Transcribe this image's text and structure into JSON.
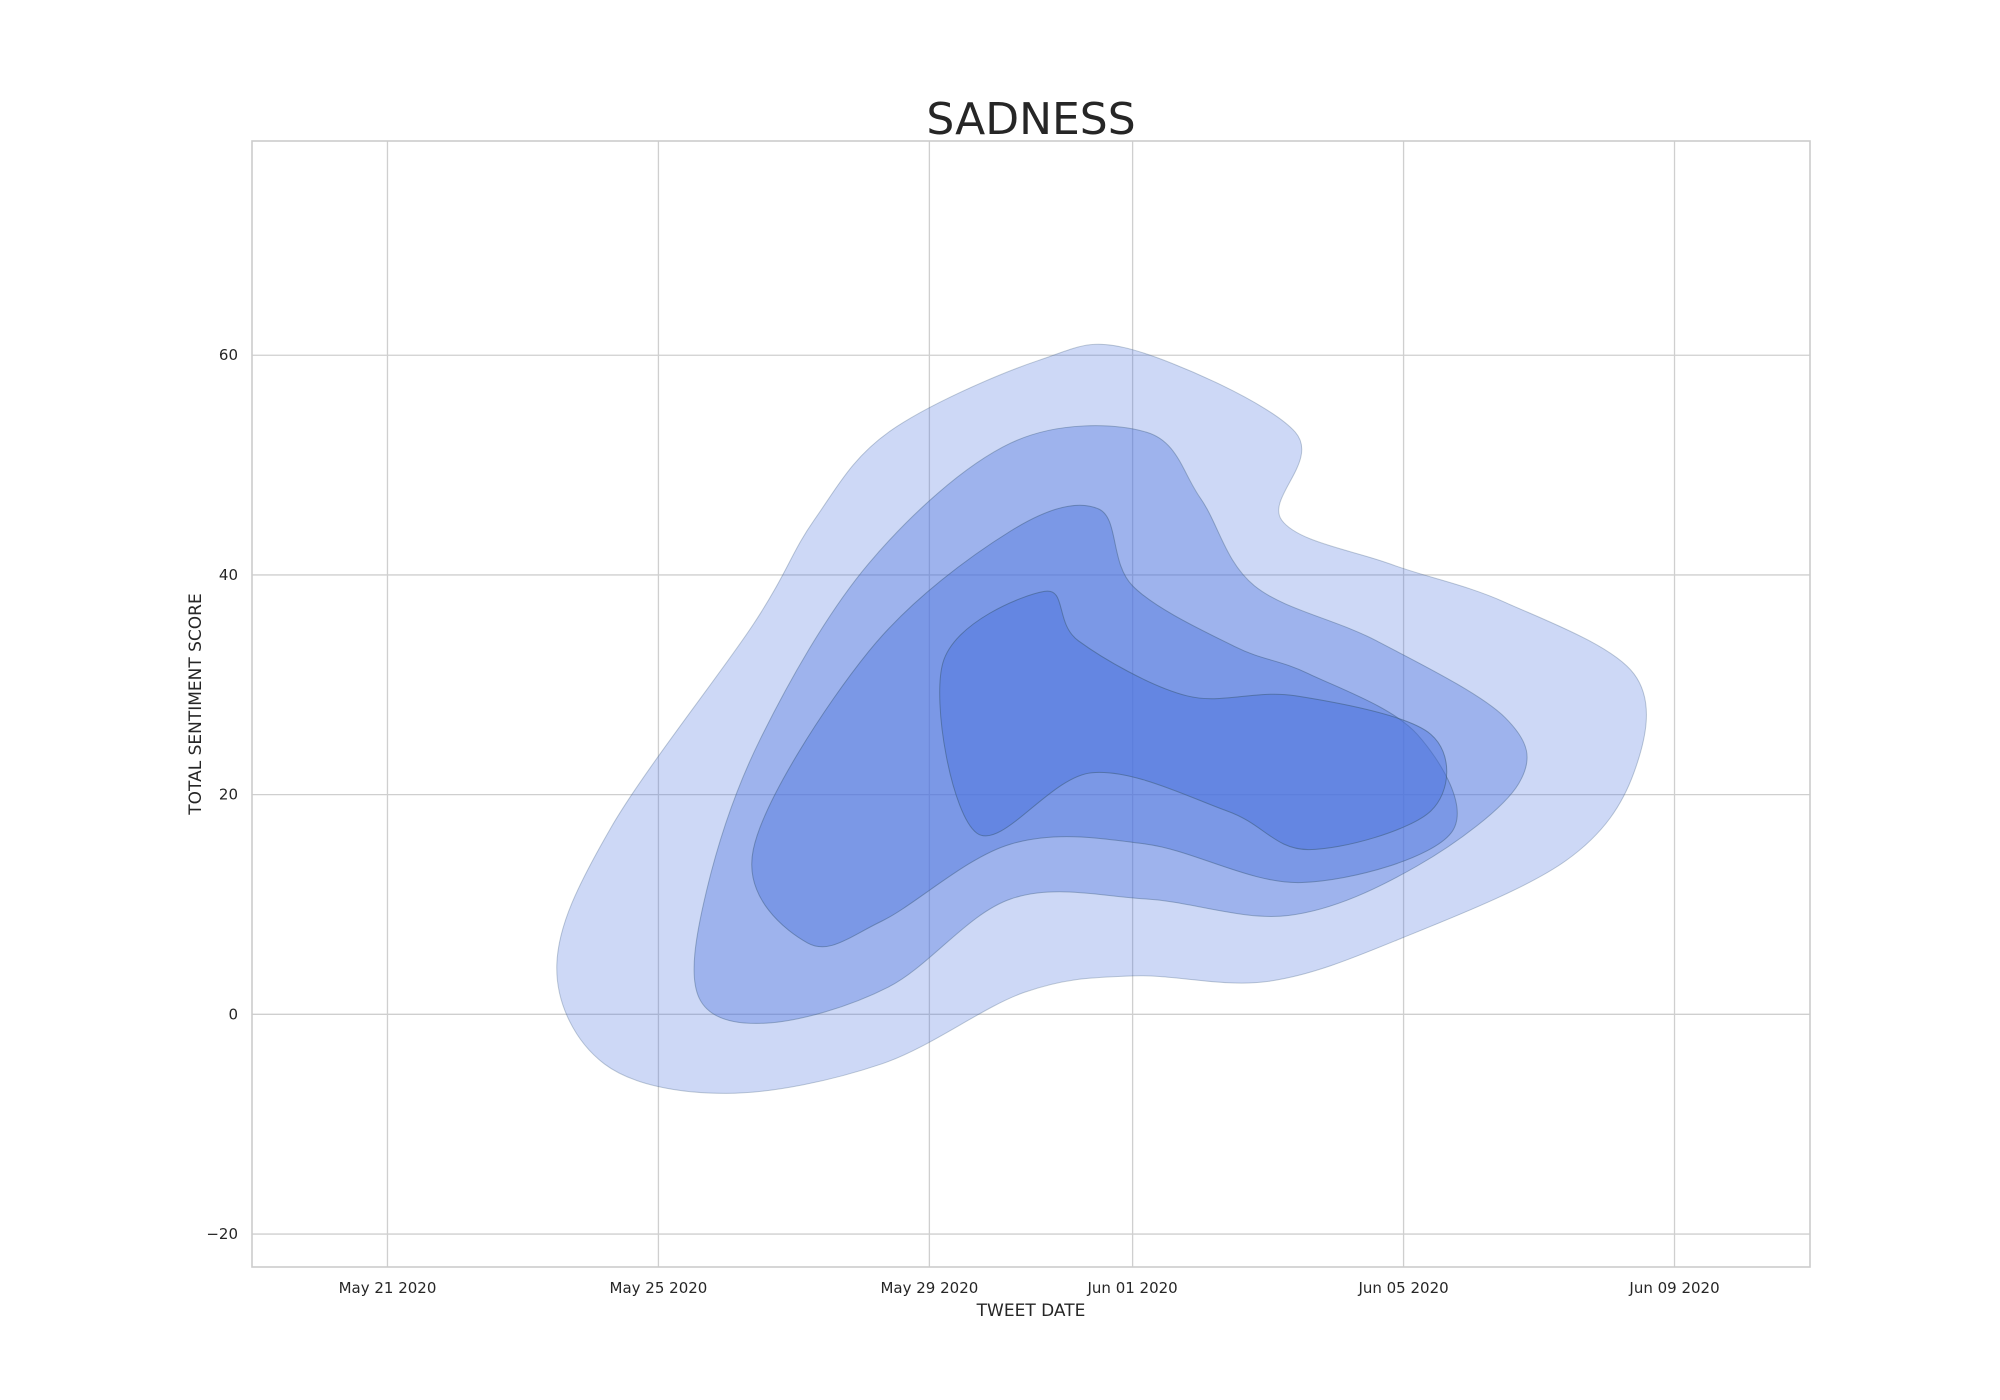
{
  "chart_data": {
    "type": "kde-contour",
    "title": "SADNESS",
    "xlabel": "TWEET DATE",
    "ylabel": "TOTAL SENTIMENT SCORE",
    "x_ticks": [
      "May 21 2020",
      "May 25 2020",
      "May 29 2020",
      "Jun 01 2020",
      "Jun 05 2020",
      "Jun 09 2020"
    ],
    "y_ticks": [
      -20,
      0,
      20,
      40,
      60
    ],
    "xlim": [
      "2020-05-19",
      "2020-06-11"
    ],
    "ylim": [
      -23,
      79.5
    ],
    "grid": true,
    "fill_color": "#4c72dd",
    "contour_color": "#3b5a7a",
    "levels": [
      {
        "level": 1,
        "opacity": 0.28,
        "points": [
          [
            "2020-05-23",
            4.5
          ],
          [
            "2020-05-24",
            -4.5
          ],
          [
            "2020-05-26",
            -7.2
          ],
          [
            "2020-05-28",
            -4.5
          ],
          [
            "2020-05-30",
            2
          ],
          [
            "2020-06-01",
            3.5
          ],
          [
            "2020-06-03",
            3
          ],
          [
            "2020-06-05",
            7
          ],
          [
            "2020-06-07",
            14
          ],
          [
            "2020-06-08",
            22
          ],
          [
            "2020-06-08",
            31
          ],
          [
            "2020-06-06",
            37.5
          ],
          [
            "2020-06-04",
            41
          ],
          [
            "2020-06-03",
            45
          ],
          [
            "2020-06-03",
            53
          ],
          [
            "2020-06-01",
            60.5
          ],
          [
            "2020-05-30",
            59.5
          ],
          [
            "2020-05-28",
            53
          ],
          [
            "2020-05-27",
            45
          ],
          [
            "2020-05-26",
            35.5
          ],
          [
            "2020-05-24",
            17
          ]
        ]
      },
      {
        "level": 2,
        "opacity": 0.36,
        "points": [
          [
            "2020-05-25",
            1.5
          ],
          [
            "2020-05-26",
            -0.8
          ],
          [
            "2020-05-28",
            2.5
          ],
          [
            "2020-05-30",
            10.5
          ],
          [
            "2020-06-01",
            10.5
          ],
          [
            "2020-06-03",
            9
          ],
          [
            "2020-06-05",
            13.5
          ],
          [
            "2020-06-06",
            21
          ],
          [
            "2020-06-06",
            27
          ],
          [
            "2020-06-04",
            34
          ],
          [
            "2020-06-02",
            39
          ],
          [
            "2020-06-02",
            47
          ],
          [
            "2020-06-01",
            53
          ],
          [
            "2020-05-30",
            52
          ],
          [
            "2020-05-28",
            41
          ],
          [
            "2020-05-26",
            25
          ],
          [
            "2020-05-25",
            11
          ]
        ]
      },
      {
        "level": 3,
        "opacity": 0.42,
        "points": [
          [
            "2020-05-27",
            6.5
          ],
          [
            "2020-05-28",
            8.5
          ],
          [
            "2020-05-30",
            15.5
          ],
          [
            "2020-06-01",
            15.5
          ],
          [
            "2020-06-03",
            12
          ],
          [
            "2020-06-05",
            16.5
          ],
          [
            "2020-06-05",
            25.5
          ],
          [
            "2020-06-03",
            31
          ],
          [
            "2020-06-02",
            33.5
          ],
          [
            "2020-06-01",
            39
          ],
          [
            "2020-05-31",
            46
          ],
          [
            "2020-05-30",
            44
          ],
          [
            "2020-05-28",
            33
          ],
          [
            "2020-05-26",
            15
          ]
        ]
      },
      {
        "level": 4,
        "opacity": 0.48,
        "points": [
          [
            "2020-05-29",
            16.5
          ],
          [
            "2020-05-31",
            22
          ],
          [
            "2020-06-02",
            18.5
          ],
          [
            "2020-06-03",
            15
          ],
          [
            "2020-06-05",
            18.5
          ],
          [
            "2020-06-05",
            25.5
          ],
          [
            "2020-06-03",
            29
          ],
          [
            "2020-06-01",
            29
          ],
          [
            "2020-05-31",
            34
          ],
          [
            "2020-05-30",
            38.5
          ],
          [
            "2020-05-29",
            32
          ]
        ]
      }
    ]
  }
}
